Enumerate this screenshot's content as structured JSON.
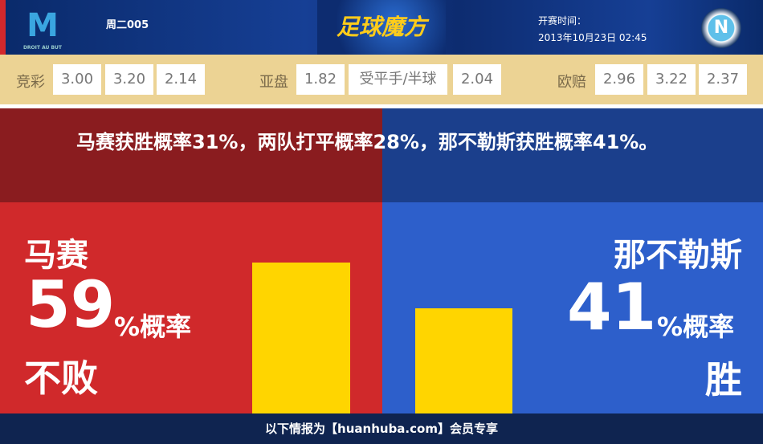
{
  "header": {
    "home_logo_text": "DROIT AU BUT",
    "match_code": "周二005",
    "brand": "足球魔方",
    "time_label": "开赛时间：",
    "time_value": "2013年10月23日 02:45",
    "away_logo_text": "N"
  },
  "odds": {
    "jingcai": {
      "label": "竞彩",
      "values": [
        "3.00",
        "3.20",
        "2.14"
      ]
    },
    "yapan": {
      "label": "亚盘",
      "values": [
        "1.82",
        "受平手/半球",
        "2.04"
      ]
    },
    "oupei": {
      "label": "欧赔",
      "values": [
        "2.96",
        "3.22",
        "2.37"
      ]
    }
  },
  "summary": "马赛获胜概率31%，两队打平概率28%，那不勒斯获胜概率41%。",
  "home": {
    "name": "马赛",
    "percent": "59",
    "percent_suffix": "%概率",
    "outcome": "不败",
    "value": 59,
    "color": "#d0292b"
  },
  "away": {
    "name": "那不勒斯",
    "percent": "41",
    "percent_suffix": "%概率",
    "outcome": "胜",
    "value": 41,
    "color": "#2d5fcb"
  },
  "bar_color": "#ffd500",
  "footer": "以下情报为【huanhuba.com】会员专享"
}
